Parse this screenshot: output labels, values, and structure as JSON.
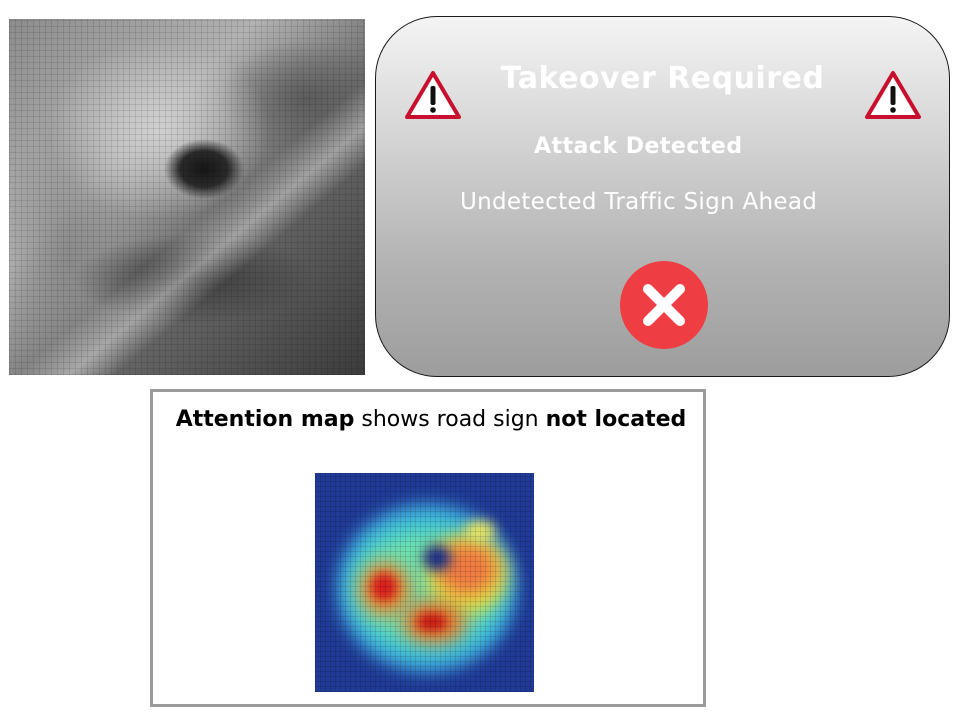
{
  "alert": {
    "title": "Takeover Required",
    "subtitle": "Attack Detected",
    "message": "Undetected Traffic Sign Ahead",
    "accent_color": "#ef3e43",
    "warning_color": "#c8102e",
    "icons": {
      "left": "warning-triangle-icon",
      "right": "warning-triangle-icon",
      "dismiss": "close-x-icon"
    }
  },
  "attention": {
    "caption_bold_1": "Attention map",
    "caption_regular": " shows road sign ",
    "caption_bold_2": "not located"
  }
}
